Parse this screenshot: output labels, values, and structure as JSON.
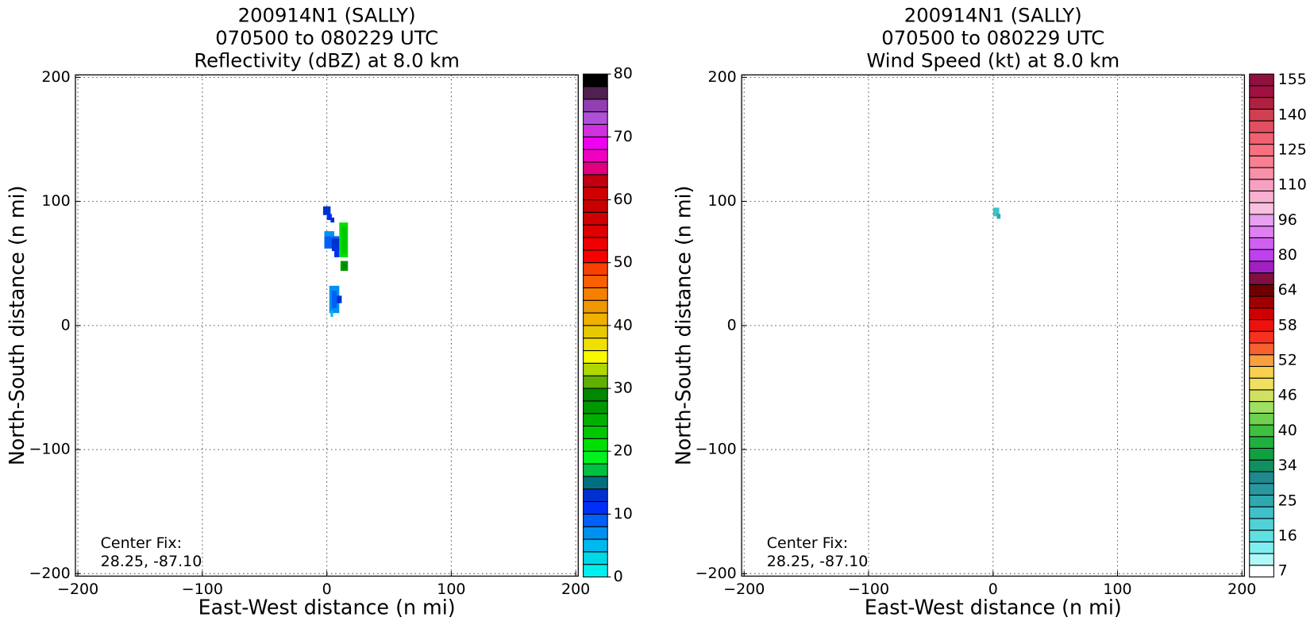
{
  "chart_data": [
    {
      "type": "heatmap",
      "title": [
        "200914N1 (SALLY)",
        "070500 to 080229 UTC",
        "Reflectivity (dBZ) at 8.0 km"
      ],
      "xlabel": "East-West distance (n mi)",
      "ylabel": "North-South distance (n mi)",
      "xlim": [
        -202,
        202
      ],
      "ylim": [
        -202,
        202
      ],
      "xticks": [
        {
          "value": -200,
          "label": "−200"
        },
        {
          "value": -100,
          "label": "−100"
        },
        0,
        100,
        200
      ],
      "yticks": [
        {
          "value": -200,
          "label": "−200"
        },
        {
          "value": -100,
          "label": "−100"
        },
        0,
        100,
        200
      ],
      "grid": true,
      "annotation": [
        "Center Fix:",
        "28.25, -87.10"
      ],
      "colorbar": {
        "lim": [
          0,
          80
        ],
        "ticks": [
          0,
          10,
          20,
          30,
          40,
          50,
          60,
          70,
          80
        ],
        "colors": [
          "#00f0f0",
          "#00d8e8",
          "#00b8f0",
          "#0090f0",
          "#0060f8",
          "#0030f8",
          "#0030d0",
          "#007080",
          "#00c040",
          "#00f020",
          "#00e000",
          "#00c800",
          "#00b000",
          "#009800",
          "#008800",
          "#60b000",
          "#b0d800",
          "#f8f800",
          "#f0e000",
          "#e8c800",
          "#f0b000",
          "#f09800",
          "#f88000",
          "#f86000",
          "#f84000",
          "#f80000",
          "#f00000",
          "#e00000",
          "#d00000",
          "#c80000",
          "#d00000",
          "#c00010",
          "#e00080",
          "#f000c0",
          "#f000f0",
          "#d030e0",
          "#b050d8",
          "#9040b0",
          "#502050",
          "#000000"
        ]
      },
      "cells": [
        [
          -3,
          3,
          89,
          96,
          12
        ],
        [
          0,
          4,
          85,
          90,
          10
        ],
        [
          3,
          6,
          83,
          87,
          12
        ],
        [
          -2,
          6,
          72,
          76,
          6
        ],
        [
          -2,
          10,
          62,
          72,
          8
        ],
        [
          4,
          10,
          60,
          70,
          12
        ],
        [
          6,
          10,
          55,
          62,
          10
        ],
        [
          10,
          17,
          55,
          83,
          20
        ],
        [
          12,
          16,
          58,
          80,
          22
        ],
        [
          11,
          17,
          44,
          52,
          26
        ],
        [
          13,
          16,
          46,
          50,
          28
        ],
        [
          2,
          10,
          10,
          32,
          6
        ],
        [
          4,
          8,
          14,
          28,
          8
        ],
        [
          8,
          12,
          18,
          24,
          12
        ],
        [
          3,
          5,
          7,
          12,
          4
        ]
      ]
    },
    {
      "type": "heatmap",
      "title": [
        "200914N1 (SALLY)",
        "070500 to 080229 UTC",
        "Wind Speed (kt) at 8.0 km"
      ],
      "xlabel": "East-West distance (n mi)",
      "ylabel": "North-South distance (n mi)",
      "xlim": [
        -202,
        202
      ],
      "ylim": [
        -202,
        202
      ],
      "xticks": [
        {
          "value": -200,
          "label": "−200"
        },
        {
          "value": -100,
          "label": "−100"
        },
        0,
        100,
        200
      ],
      "yticks": [
        {
          "value": -200,
          "label": "−200"
        },
        {
          "value": -100,
          "label": "−100"
        },
        0,
        100,
        200
      ],
      "grid": true,
      "annotation": [
        "Center Fix:",
        "28.25, -87.10"
      ],
      "colorbar": {
        "labels": [
          7,
          16,
          25,
          34,
          40,
          46,
          52,
          58,
          64,
          80,
          96,
          110,
          125,
          140,
          155
        ],
        "colors": [
          "#ffffff",
          "#b0f8f8",
          "#80eef0",
          "#60e0e0",
          "#50d0d8",
          "#40c0c8",
          "#30a8b0",
          "#2898a0",
          "#208890",
          "#109060",
          "#10a040",
          "#20b040",
          "#40c040",
          "#70d050",
          "#a0e060",
          "#d0e060",
          "#f0e060",
          "#f8d050",
          "#f8a040",
          "#f86030",
          "#f83020",
          "#f01010",
          "#d00000",
          "#a00000",
          "#700000",
          "#801040",
          "#a020c0",
          "#c040f0",
          "#d060f0",
          "#e080f0",
          "#e8a0f0",
          "#f8c0e0",
          "#f8b0d0",
          "#f8a0c0",
          "#f890a8",
          "#f88090",
          "#f87080",
          "#f06070",
          "#e05060",
          "#d04050",
          "#b02040",
          "#a01040",
          "#901040"
        ]
      },
      "cells": [
        [
          0,
          5,
          88,
          95,
          22
        ],
        [
          3,
          6,
          86,
          90,
          25
        ]
      ]
    }
  ]
}
